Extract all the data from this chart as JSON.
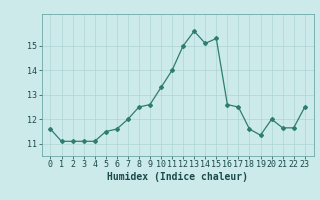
{
  "x": [
    0,
    1,
    2,
    3,
    4,
    5,
    6,
    7,
    8,
    9,
    10,
    11,
    12,
    13,
    14,
    15,
    16,
    17,
    18,
    19,
    20,
    21,
    22,
    23
  ],
  "y": [
    11.6,
    11.1,
    11.1,
    11.1,
    11.1,
    11.5,
    11.6,
    12.0,
    12.5,
    12.6,
    13.3,
    14.0,
    15.0,
    15.6,
    15.1,
    15.3,
    12.6,
    12.5,
    11.6,
    11.35,
    12.0,
    11.65,
    11.65,
    12.5
  ],
  "line_color": "#2e7d6e",
  "marker": "D",
  "marker_size": 2.0,
  "bg_color": "#cceaea",
  "grid_color": "#aed4d4",
  "xlabel": "Humidex (Indice chaleur)",
  "ylim_min": 10.5,
  "ylim_max": 16.3,
  "yticks": [
    11,
    12,
    13,
    14,
    15
  ],
  "xticks": [
    0,
    1,
    2,
    3,
    4,
    5,
    6,
    7,
    8,
    9,
    10,
    11,
    12,
    13,
    14,
    15,
    16,
    17,
    18,
    19,
    20,
    21,
    22,
    23
  ],
  "xlabel_fontsize": 7.0,
  "tick_fontsize": 6.0,
  "line_width": 0.9
}
